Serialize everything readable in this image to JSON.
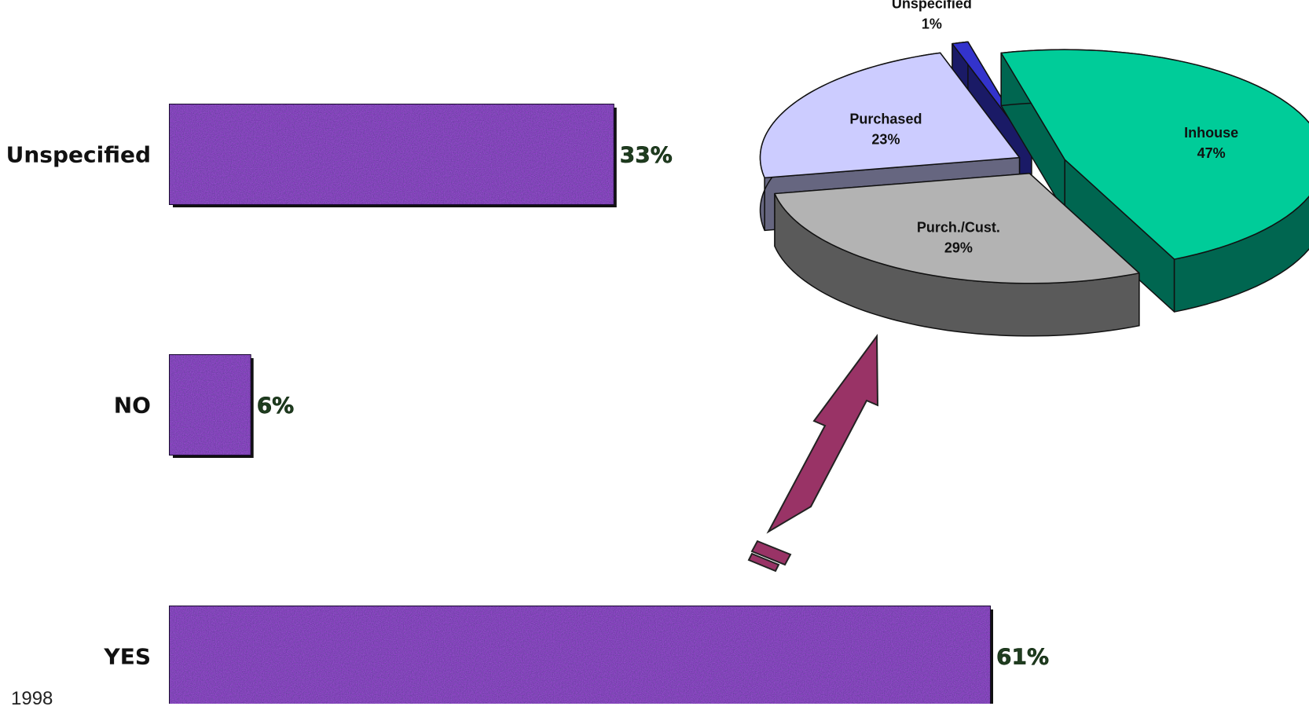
{
  "chart_data": [
    {
      "type": "bar",
      "orientation": "horizontal",
      "categories": [
        "Unspecified",
        "NO",
        "YES"
      ],
      "values": [
        33,
        6,
        61
      ],
      "data_labels": [
        "33%",
        "6%",
        "61%"
      ],
      "xlim": [
        0,
        61
      ],
      "grid": false,
      "legend": "none",
      "bar_color": "#3a1a7a",
      "label_color": "#1f3d1f"
    },
    {
      "type": "pie",
      "style": "3d-exploded",
      "categories": [
        "Inhouse",
        "Unspecified",
        "Purchased",
        "Purch./Cust."
      ],
      "values": [
        47,
        1,
        23,
        29
      ],
      "data_labels": [
        "47%",
        "1%",
        "23%",
        "29%"
      ],
      "colors": [
        "#00cc99",
        "#3333cc",
        "#ccccff",
        "#b3b3b3"
      ],
      "side_colors": [
        "#006650",
        "#1a1a66",
        "#666680",
        "#5a5a5a"
      ],
      "legend": "none"
    }
  ],
  "arrow": {
    "color": "#993366"
  },
  "footer": {
    "text": "1998"
  }
}
